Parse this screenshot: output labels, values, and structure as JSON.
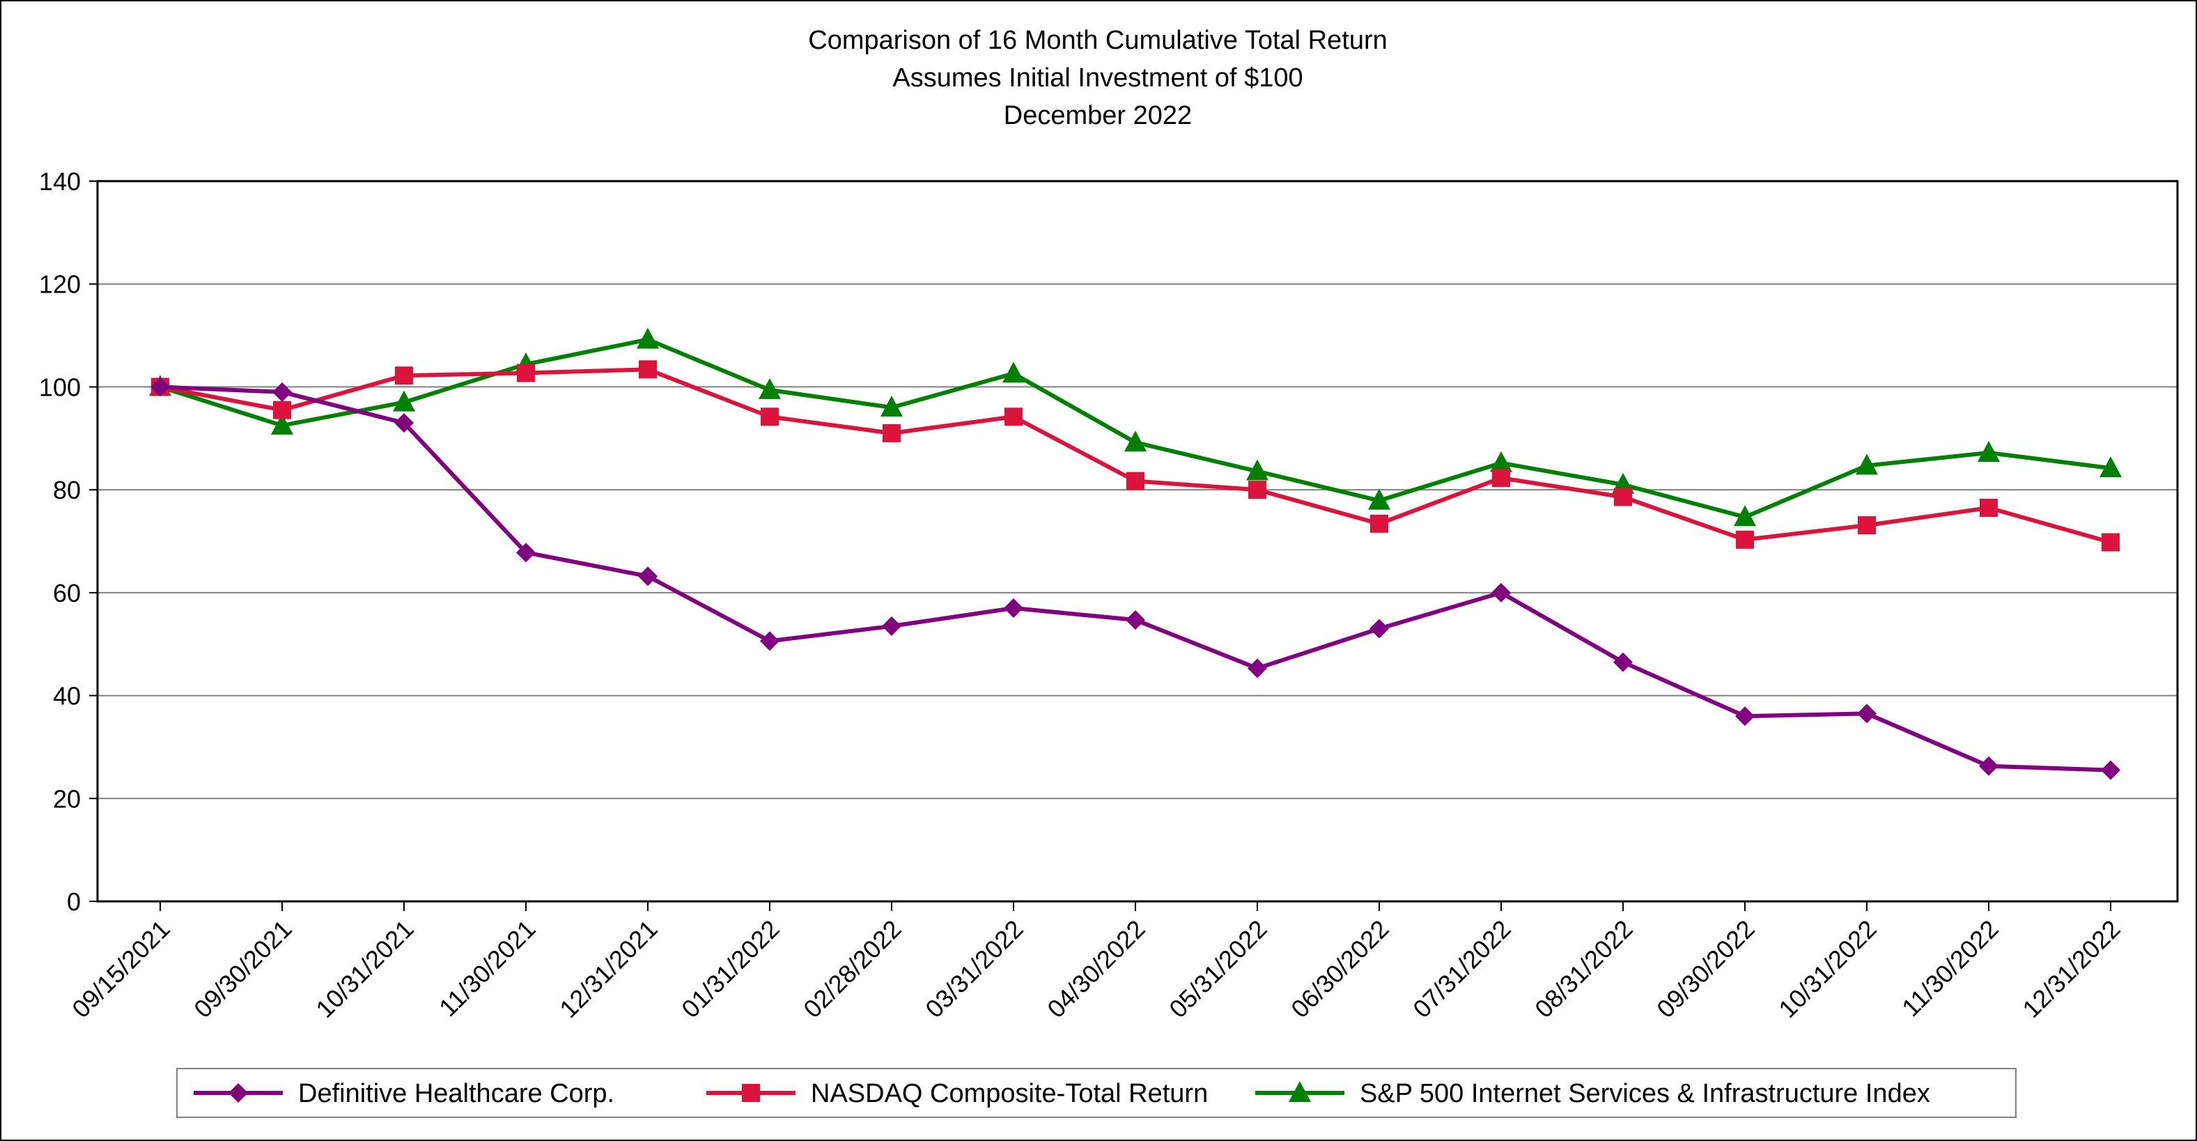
{
  "chart_data": {
    "type": "line",
    "title": [
      "Comparison of 16 Month Cumulative Total Return",
      "Assumes Initial Investment of $100",
      "December 2022"
    ],
    "xlabel": "",
    "ylabel": "",
    "ylim": [
      0,
      140
    ],
    "yticks": [
      0,
      20,
      40,
      60,
      80,
      100,
      120,
      140
    ],
    "grid": true,
    "legend_position": "bottom",
    "categories": [
      "09/15/2021",
      "09/30/2021",
      "10/31/2021",
      "11/30/2021",
      "12/31/2021",
      "01/31/2022",
      "02/28/2022",
      "03/31/2022",
      "04/30/2022",
      "05/31/2022",
      "06/30/2022",
      "07/31/2022",
      "08/31/2022",
      "09/30/2022",
      "10/31/2022",
      "11/30/2022",
      "12/31/2022"
    ],
    "series": [
      {
        "name": "Definitive Healthcare Corp.",
        "color": "#800080",
        "marker": "diamond",
        "values": [
          100,
          99,
          93,
          67.8,
          63.2,
          50.6,
          53.5,
          57,
          54.7,
          45.3,
          53,
          60,
          46.5,
          36,
          36.5,
          26.3,
          25.5
        ]
      },
      {
        "name": "NASDAQ Composite-Total Return",
        "color": "#DC143C",
        "marker": "square",
        "values": [
          100,
          95.5,
          102.2,
          102.7,
          103.4,
          94.2,
          91,
          94.2,
          81.7,
          80,
          73.4,
          82.3,
          78.6,
          70.3,
          73.1,
          76.5,
          69.8
        ]
      },
      {
        "name": "S&P 500 Internet Services & Infrastructure Index",
        "color": "#008000",
        "marker": "triangle",
        "values": [
          100,
          92.5,
          97,
          104.4,
          109.2,
          99.4,
          96,
          102.6,
          89.2,
          83.6,
          77.9,
          85.2,
          81,
          74.7,
          84.7,
          87.2,
          84.2
        ]
      }
    ]
  }
}
